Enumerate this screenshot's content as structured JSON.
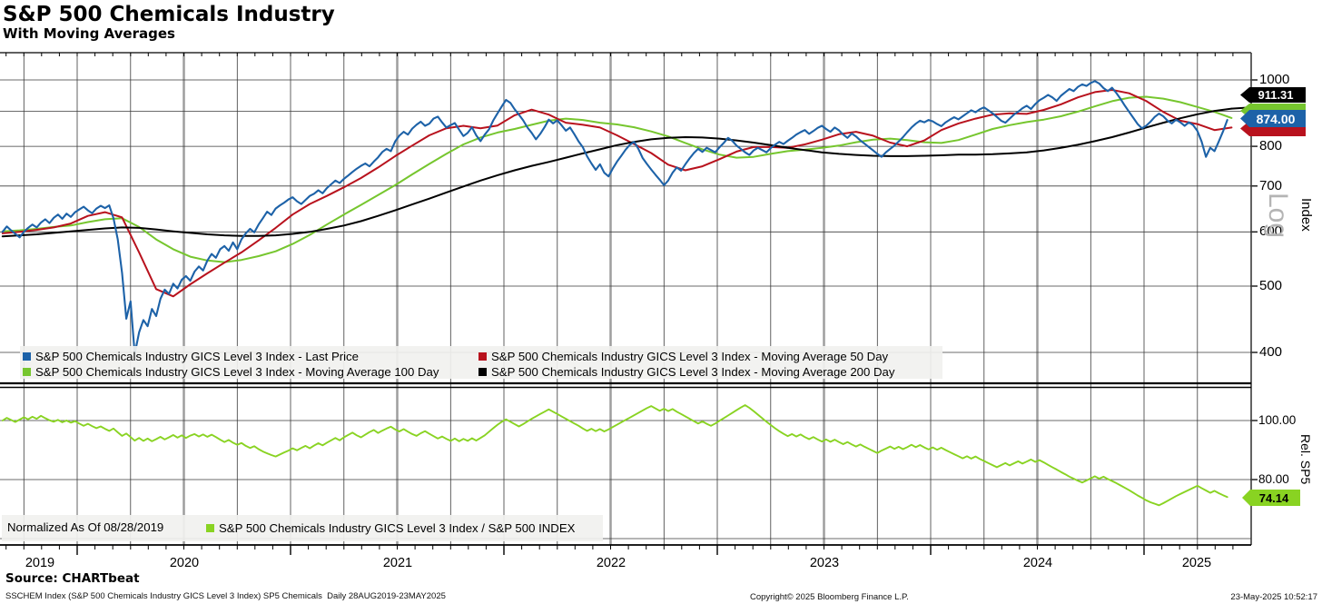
{
  "header": {
    "title": "S&P 500 Chemicals Industry",
    "subtitle": "With Moving Averages"
  },
  "colors": {
    "price": "#1d62a8",
    "ma50": "#b8121d",
    "ma100": "#76c62e",
    "ma200": "#000000",
    "rel": "#89d322",
    "grid": "#3a3a3a",
    "grid_major": "#9e9e9e",
    "axis": "#3c3c3c",
    "legend_bg": "#f1f1ef",
    "watermark": "#b4b4b4",
    "badge_ma200_bg": "#000000",
    "badge_price_bg": "#1d62a8",
    "badge_ma100_bg": "#76c62e",
    "badge_ma50_bg": "#b8121d",
    "badge_rel_bg": "#89d322"
  },
  "main_panel": {
    "axis_title": "Index",
    "scale_label": "Log",
    "ytick_labels": [
      "1000",
      "800",
      "700",
      "600",
      "500",
      "400"
    ],
    "ytick_values": [
      1000,
      800,
      700,
      600,
      500,
      400
    ],
    "price_badges": {
      "ma200": "911.31",
      "price": "874.00",
      "ma100": "",
      "ma50": ""
    },
    "legend": [
      {
        "label": "S&P 500 Chemicals Industry GICS Level 3 Index - Last Price",
        "color_key": "price"
      },
      {
        "label": "S&P 500 Chemicals Industry GICS Level 3 Index - Moving Average 50 Day",
        "color_key": "ma50"
      },
      {
        "label": "S&P 500 Chemicals Industry GICS Level 3 Index - Moving Average 100 Day",
        "color_key": "ma100"
      },
      {
        "label": "S&P 500 Chemicals Industry GICS Level 3 Index - Moving Average 200 Day",
        "color_key": "ma200"
      }
    ]
  },
  "lower_panel": {
    "axis_title": "Rel. SP5",
    "note": "Normalized As Of 08/28/2019",
    "legend_label": "S&P 500 Chemicals Industry GICS Level 3 Index / S&P 500 INDEX",
    "ytick_labels": [
      "100.00",
      "80.00"
    ],
    "ytick_values": [
      100,
      80
    ],
    "badge": "74.14"
  },
  "xaxis": {
    "years": [
      "2019",
      "2020",
      "2021",
      "2022",
      "2023",
      "2024",
      "2025"
    ]
  },
  "footer": {
    "source": "Source: CHARTbeat",
    "description": "SSCHEM Index (S&P 500 Chemicals Industry GICS Level 3 Index) SP5 Chemicals  Daily 28AUG2019-23MAY2025",
    "copyright": "Copyright© 2025 Bloomberg Finance L.P.",
    "timestamp": "23-May-2025 10:52:17"
  },
  "chart_data": [
    {
      "type": "line",
      "panel": "main",
      "title": "S&P 500 Chemicals Industry With Moving Averages",
      "ylabel": "Index",
      "yscale": "log",
      "ylim": [
        362,
        1100
      ],
      "x_unit": "decimal_year",
      "xlim": [
        2019.65,
        2025.42
      ],
      "gridlines_y": [
        400,
        500,
        600,
        700,
        800,
        900,
        1000
      ],
      "legend_position": "inside-bottom",
      "series": [
        {
          "name": "S&P 500 Chemicals Industry GICS Level 3 Index - Last Price",
          "color_key": "price",
          "width": 2.1,
          "start": 2019.65,
          "step": 0.02,
          "values": [
            600,
            611,
            603,
            596,
            589,
            600,
            608,
            615,
            609,
            619,
            626,
            618,
            629,
            636,
            627,
            638,
            631,
            641,
            647,
            653,
            645,
            639,
            649,
            655,
            650,
            656,
            628,
            585,
            523,
            448,
            475,
            398,
            428,
            446,
            437,
            463,
            452,
            479,
            494,
            487,
            504,
            496,
            511,
            517,
            509,
            525,
            534,
            527,
            545,
            557,
            550,
            566,
            572,
            563,
            579,
            566,
            585,
            597,
            606,
            599,
            615,
            628,
            642,
            635,
            649,
            656,
            662,
            669,
            674,
            665,
            659,
            668,
            677,
            682,
            690,
            683,
            695,
            704,
            713,
            707,
            717,
            725,
            734,
            742,
            749,
            755,
            748,
            760,
            771,
            785,
            793,
            787,
            813,
            829,
            840,
            832,
            849,
            860,
            869,
            857,
            863,
            878,
            884,
            867,
            852,
            859,
            865,
            846,
            828,
            837,
            853,
            830,
            814,
            832,
            847,
            873,
            894,
            915,
            935,
            926,
            906,
            890,
            873,
            852,
            837,
            819,
            834,
            853,
            875,
            864,
            873,
            859,
            843,
            852,
            833,
            813,
            797,
            773,
            755,
            739,
            753,
            732,
            723,
            742,
            760,
            775,
            791,
            804,
            812,
            793,
            769,
            754,
            740,
            727,
            715,
            702,
            713,
            732,
            745,
            737,
            753,
            768,
            782,
            793,
            785,
            796,
            790,
            784,
            797,
            809,
            823,
            815,
            802,
            793,
            784,
            777,
            789,
            796,
            790,
            784,
            795,
            804,
            812,
            806,
            815,
            823,
            832,
            839,
            845,
            834,
            842,
            851,
            857,
            848,
            840,
            852,
            844,
            832,
            823,
            835,
            827,
            816,
            807,
            798,
            789,
            780,
            772,
            784,
            793,
            802,
            813,
            825,
            839,
            852,
            863,
            872,
            867,
            874,
            870,
            862,
            856,
            867,
            875,
            882,
            876,
            885,
            894,
            903,
            897,
            906,
            912,
            903,
            894,
            883,
            872,
            866,
            878,
            890,
            899,
            909,
            917,
            907,
            922,
            934,
            942,
            951,
            943,
            932,
            948,
            959,
            970,
            963,
            977,
            985,
            980,
            990,
            996,
            988,
            973,
            963,
            974,
            957,
            938,
            917,
            898,
            880,
            862,
            850,
            857,
            869,
            883,
            893,
            885,
            872,
            864,
            875,
            867,
            857,
            867,
            859,
            842,
            813,
            772,
            796,
            787,
            813,
            841,
            874
          ]
        },
        {
          "name": "S&P 500 Chemicals Industry GICS Level 3 Index - Moving Average 50 Day",
          "color_key": "ma50",
          "width": 2,
          "start": 2019.65,
          "step": 0.08,
          "values": [
            597,
            600,
            604,
            609,
            617,
            633,
            641,
            630,
            560,
            495,
            483,
            503,
            522,
            541,
            560,
            583,
            608,
            636,
            659,
            677,
            697,
            719,
            745,
            774,
            802,
            830,
            850,
            857,
            850,
            858,
            888,
            905,
            890,
            866,
            860,
            852,
            830,
            806,
            782,
            752,
            738,
            748,
            766,
            786,
            798,
            798,
            796,
            805,
            818,
            833,
            840,
            829,
            810,
            800,
            816,
            845,
            864,
            878,
            890,
            894,
            892,
            904,
            921,
            943,
            960,
            967,
            956,
            932,
            898,
            872,
            862,
            845,
            852
          ]
        },
        {
          "name": "S&P 500 Chemicals Industry GICS Level 3 Index - Moving Average 100 Day",
          "color_key": "ma100",
          "width": 2,
          "start": 2019.65,
          "step": 0.08,
          "values": [
            601,
            603,
            606,
            610,
            613,
            620,
            626,
            628,
            610,
            585,
            566,
            552,
            545,
            542,
            546,
            553,
            562,
            576,
            594,
            615,
            636,
            657,
            679,
            702,
            728,
            754,
            780,
            805,
            824,
            838,
            848,
            860,
            872,
            878,
            874,
            866,
            861,
            853,
            841,
            827,
            809,
            792,
            778,
            770,
            772,
            780,
            787,
            791,
            796,
            802,
            811,
            818,
            821,
            817,
            811,
            809,
            817,
            832,
            848,
            859,
            868,
            875,
            885,
            899,
            915,
            931,
            942,
            945,
            939,
            928,
            913,
            898,
            880
          ]
        },
        {
          "name": "S&P 500 Chemicals Industry GICS Level 3 Index - Moving Average 200 Day",
          "color_key": "ma200",
          "width": 2,
          "start": 2019.65,
          "step": 0.08,
          "extend_to_axis": true,
          "values": [
            591,
            593,
            595,
            598,
            601,
            604,
            607,
            609,
            608,
            605,
            601,
            598,
            595,
            593,
            592,
            592,
            593,
            596,
            600,
            606,
            613,
            622,
            633,
            645,
            658,
            671,
            685,
            699,
            713,
            726,
            738,
            749,
            759,
            770,
            781,
            792,
            803,
            812,
            819,
            823,
            825,
            824,
            821,
            816,
            810,
            803,
            796,
            790,
            784,
            780,
            777,
            775,
            774,
            774,
            775,
            776,
            778,
            778,
            779,
            781,
            784,
            789,
            796,
            804,
            814,
            825,
            838,
            852,
            866,
            879,
            891,
            901,
            908
          ]
        }
      ],
      "last_values": {
        "ma200": 911.31,
        "price": 874.0
      }
    },
    {
      "type": "line",
      "panel": "lower",
      "title": "Relative to S&P 500",
      "ylabel": "Rel. SP5",
      "yscale": "linear",
      "ylim": [
        58,
        112
      ],
      "x_unit": "decimal_year",
      "xlim": [
        2019.65,
        2025.42
      ],
      "gridlines_y": [
        60,
        80,
        100
      ],
      "note": "Normalized As Of 08/28/2019",
      "series": [
        {
          "name": "S&P 500 Chemicals Industry GICS Level 3 Index / S&P 500 INDEX",
          "color_key": "rel",
          "width": 1.9,
          "start": 2019.65,
          "step": 0.02,
          "values": [
            100.0,
            100.9,
            100.2,
            99.5,
            100.3,
            101.1,
            100.4,
            101.3,
            100.6,
            101.6,
            100.8,
            100.1,
            99.6,
            100.2,
            99.4,
            100.0,
            99.3,
            99.8,
            99.0,
            98.2,
            98.9,
            98.1,
            97.4,
            98.0,
            97.2,
            96.5,
            97.3,
            96.0,
            94.8,
            95.6,
            94.4,
            93.2,
            94.1,
            93.1,
            93.9,
            93.0,
            93.7,
            94.5,
            93.6,
            94.3,
            95.1,
            94.2,
            95.0,
            94.1,
            94.9,
            95.4,
            94.6,
            95.3,
            94.5,
            95.2,
            94.4,
            93.5,
            92.7,
            93.4,
            92.5,
            91.8,
            92.4,
            91.4,
            90.7,
            91.3,
            90.3,
            89.5,
            88.9,
            88.3,
            87.8,
            88.5,
            89.2,
            89.8,
            90.6,
            89.9,
            90.7,
            91.4,
            90.6,
            91.5,
            92.3,
            91.6,
            92.5,
            93.3,
            94.1,
            93.3,
            94.3,
            95.1,
            95.9,
            95.0,
            94.3,
            95.2,
            96.1,
            96.8,
            95.8,
            96.6,
            97.3,
            97.9,
            97.0,
            96.3,
            97.1,
            96.2,
            95.4,
            94.8,
            95.7,
            96.4,
            95.5,
            94.7,
            93.9,
            94.6,
            93.8,
            93.1,
            93.9,
            93.0,
            93.8,
            93.1,
            94.0,
            93.2,
            94.1,
            95.0,
            96.2,
            97.4,
            98.6,
            99.6,
            100.4,
            99.6,
            98.8,
            98.0,
            98.8,
            99.7,
            100.6,
            101.4,
            102.2,
            103.0,
            103.8,
            103.0,
            102.2,
            101.4,
            100.6,
            99.8,
            99.0,
            98.2,
            97.3,
            96.5,
            97.2,
            96.4,
            97.1,
            96.3,
            97.0,
            97.8,
            98.6,
            99.4,
            100.2,
            101.0,
            101.8,
            102.6,
            103.4,
            104.2,
            104.9,
            104.1,
            103.3,
            104.0,
            103.2,
            103.9,
            103.0,
            102.2,
            101.4,
            100.6,
            99.8,
            99.0,
            99.7,
            98.9,
            98.2,
            99.0,
            99.9,
            100.8,
            101.7,
            102.6,
            103.5,
            104.4,
            105.2,
            104.3,
            103.2,
            102.0,
            100.8,
            99.6,
            98.5,
            97.4,
            96.4,
            95.5,
            94.7,
            95.4,
            94.6,
            95.3,
            94.4,
            93.7,
            94.4,
            93.6,
            92.9,
            93.6,
            92.8,
            93.5,
            92.7,
            92.0,
            92.7,
            91.9,
            91.2,
            91.9,
            91.1,
            90.4,
            89.7,
            89.0,
            89.8,
            90.5,
            91.2,
            90.4,
            91.1,
            90.3,
            91.0,
            91.8,
            91.0,
            91.7,
            90.9,
            90.2,
            90.9,
            90.1,
            90.8,
            90.0,
            89.3,
            88.6,
            87.9,
            87.2,
            87.9,
            87.1,
            87.8,
            87.0,
            86.3,
            85.6,
            84.9,
            84.2,
            84.9,
            85.6,
            84.8,
            85.5,
            86.2,
            85.4,
            86.1,
            86.8,
            86.0,
            86.6,
            85.8,
            85.0,
            84.2,
            83.4,
            82.6,
            81.8,
            81.0,
            80.3,
            79.6,
            79.0,
            79.7,
            80.4,
            81.1,
            80.3,
            81.0,
            80.2,
            79.5,
            78.8,
            78.0,
            77.2,
            76.4,
            75.5,
            74.6,
            73.8,
            73.0,
            72.3,
            71.8,
            71.3,
            72.0,
            72.8,
            73.6,
            74.4,
            75.1,
            75.8,
            76.5,
            77.2,
            77.9,
            77.1,
            76.3,
            75.5,
            76.2,
            75.4,
            74.7,
            74.1
          ]
        }
      ],
      "last_value": 74.14
    }
  ]
}
